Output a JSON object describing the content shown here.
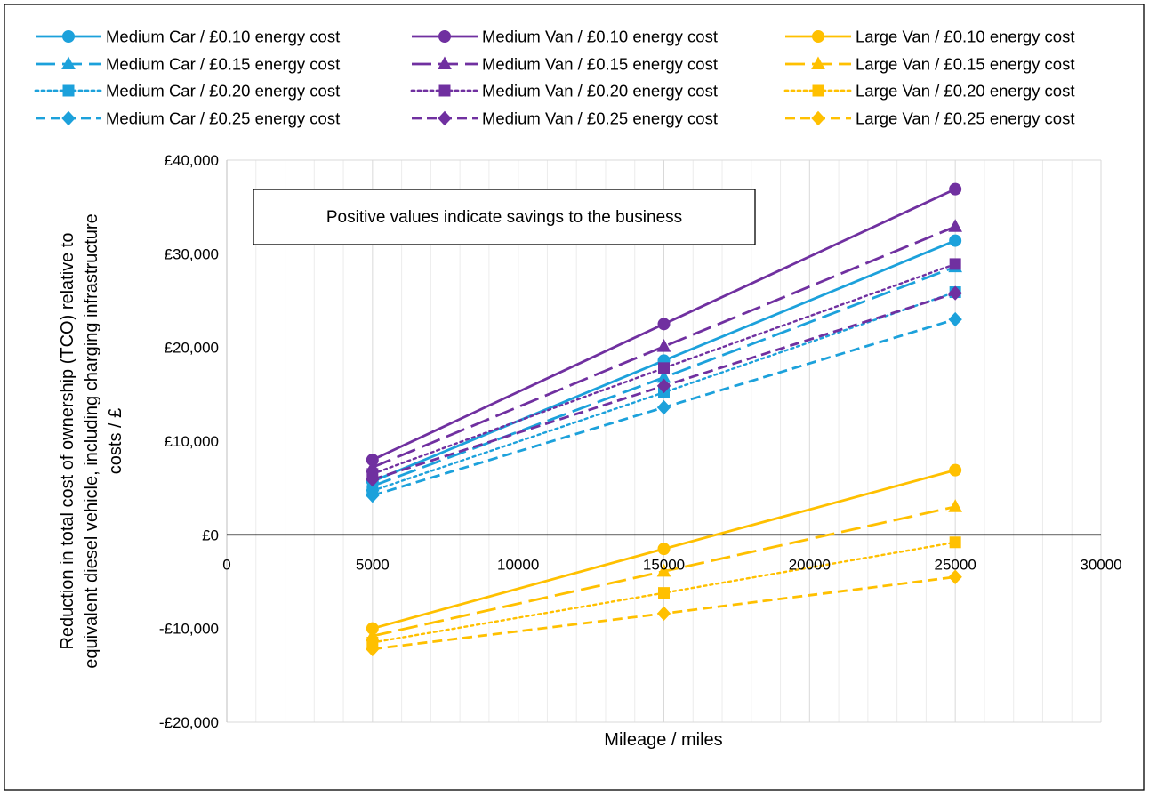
{
  "chart_data": {
    "type": "line",
    "xlabel": "Mileage / miles",
    "ylabel_lines": [
      "Reduction in total cost of ownership (TCO) relative to",
      "equivalent diesel vehicle, including charging infrastructure",
      "costs / £"
    ],
    "xlim": [
      0,
      30000
    ],
    "ylim": [
      -20000,
      40000
    ],
    "x_ticks": [
      0,
      5000,
      10000,
      15000,
      20000,
      25000,
      30000
    ],
    "x_tick_labels": [
      "0",
      "5000",
      "10000",
      "15000",
      "20000",
      "25000",
      "30000"
    ],
    "y_ticks": [
      -20000,
      -10000,
      0,
      10000,
      20000,
      30000,
      40000
    ],
    "y_tick_labels": [
      "-£20,000",
      "-£10,000",
      "£0",
      "£10,000",
      "£20,000",
      "£30,000",
      "£40,000"
    ],
    "grid": {
      "vertical": true,
      "horizontal": false
    },
    "legend_position": "top",
    "annotation": "Positive values indicate savings to the business",
    "x": [
      5000,
      15000,
      25000
    ],
    "series": [
      {
        "name": "Medium Car / £0.10 energy cost",
        "values": [
          5700,
          18600,
          31400
        ],
        "color": "#1CA1DB",
        "marker": "circle",
        "dash": "solid"
      },
      {
        "name": "Medium Car / £0.15 energy cost",
        "values": [
          5200,
          16800,
          28600
        ],
        "color": "#1CA1DB",
        "marker": "triangle",
        "dash": "longdash"
      },
      {
        "name": "Medium Car / £0.20 energy cost",
        "values": [
          4700,
          15200,
          25900
        ],
        "color": "#1CA1DB",
        "marker": "square",
        "dash": "dot"
      },
      {
        "name": "Medium Car / £0.25 energy cost",
        "values": [
          4200,
          13600,
          23000
        ],
        "color": "#1CA1DB",
        "marker": "diamond",
        "dash": "dash"
      },
      {
        "name": "Medium Van / £0.10 energy cost",
        "values": [
          8000,
          22500,
          36900
        ],
        "color": "#7030A0",
        "marker": "circle",
        "dash": "solid"
      },
      {
        "name": "Medium Van / £0.15 energy cost",
        "values": [
          7200,
          20100,
          32900
        ],
        "color": "#7030A0",
        "marker": "triangle",
        "dash": "longdash"
      },
      {
        "name": "Medium Van / £0.20 energy cost",
        "values": [
          6500,
          17800,
          28900
        ],
        "color": "#7030A0",
        "marker": "square",
        "dash": "dot"
      },
      {
        "name": "Medium Van / £0.25 energy cost",
        "values": [
          5900,
          15900,
          25800
        ],
        "color": "#7030A0",
        "marker": "diamond",
        "dash": "dash"
      },
      {
        "name": "Large Van / £0.10 energy cost",
        "values": [
          -10000,
          -1500,
          6900
        ],
        "color": "#FFC000",
        "marker": "circle",
        "dash": "solid"
      },
      {
        "name": "Large Van / £0.15 energy cost",
        "values": [
          -10800,
          -3900,
          3000
        ],
        "color": "#FFC000",
        "marker": "triangle",
        "dash": "longdash"
      },
      {
        "name": "Large Van / £0.20 energy cost",
        "values": [
          -11500,
          -6200,
          -800
        ],
        "color": "#FFC000",
        "marker": "square",
        "dash": "dot"
      },
      {
        "name": "Large Van / £0.25 energy cost",
        "values": [
          -12200,
          -8400,
          -4500
        ],
        "color": "#FFC000",
        "marker": "diamond",
        "dash": "dash"
      }
    ]
  }
}
